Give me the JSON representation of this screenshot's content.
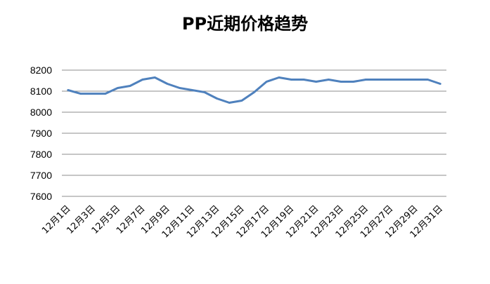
{
  "chart_data": {
    "type": "line",
    "title": "PP近期价格趋势",
    "xlabel": "",
    "ylabel": "",
    "ylim": [
      7600,
      8200
    ],
    "yticks": [
      7600,
      7700,
      7800,
      7900,
      8000,
      8100,
      8200
    ],
    "grid": true,
    "legend": "none",
    "x": [
      "12月1日",
      "12月2日",
      "12月3日",
      "12月4日",
      "12月5日",
      "12月6日",
      "12月7日",
      "12月8日",
      "12月9日",
      "12月10日",
      "12月11日",
      "12月12日",
      "12月13日",
      "12月14日",
      "12月15日",
      "12月16日",
      "12月17日",
      "12月18日",
      "12月19日",
      "12月20日",
      "12月21日",
      "12月22日",
      "12月23日",
      "12月24日",
      "12月25日",
      "12月26日",
      "12月27日",
      "12月28日",
      "12月29日",
      "12月30日",
      "12月31日"
    ],
    "x_tick_labels": [
      "12月1日",
      "12月3日",
      "12月5日",
      "12月7日",
      "12月9日",
      "12月11日",
      "12月13日",
      "12月15日",
      "12月17日",
      "12月19日",
      "12月21日",
      "12月23日",
      "12月25日",
      "12月27日",
      "12月29日",
      "12月31日"
    ],
    "series": [
      {
        "color": "#4F81BD",
        "values": [
          8105,
          8088,
          8088,
          8088,
          8115,
          8125,
          8155,
          8165,
          8135,
          8115,
          8105,
          8095,
          8065,
          8045,
          8055,
          8095,
          8145,
          8165,
          8155,
          8155,
          8145,
          8155,
          8145,
          8145,
          8155,
          8155,
          8155,
          8155,
          8155,
          8155,
          8135
        ]
      }
    ]
  }
}
